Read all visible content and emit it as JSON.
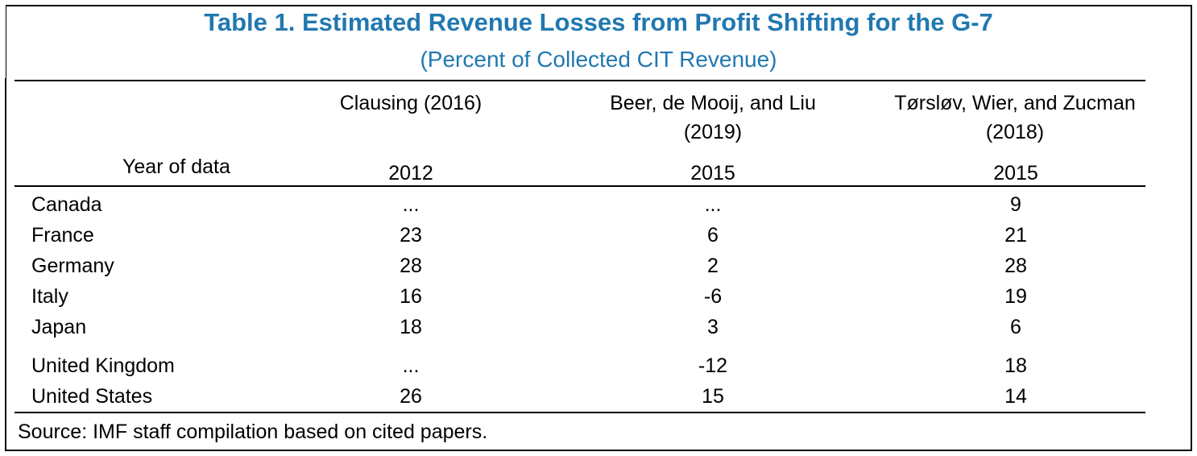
{
  "title": "Table 1. Estimated Revenue Losses from Profit Shifting for the G-7",
  "subtitle": "(Percent of Collected CIT Revenue)",
  "columns": [
    {
      "line1": "Clausing (2016)",
      "line2": "",
      "year": "2012"
    },
    {
      "line1": "Beer, de Mooij, and Liu",
      "line2": "(2019)",
      "year": "2015"
    },
    {
      "line1": "Tørsløv, Wier, and Zucman",
      "line2": "(2018)",
      "year": "2015"
    }
  ],
  "year_label": "Year of data",
  "rows": [
    {
      "country": "Canada",
      "values": [
        "...",
        "...",
        "9"
      ]
    },
    {
      "country": "France",
      "values": [
        "23",
        "6",
        "21"
      ]
    },
    {
      "country": "Germany",
      "values": [
        "28",
        "2",
        "28"
      ]
    },
    {
      "country": "Italy",
      "values": [
        "16",
        "-6",
        "19"
      ]
    },
    {
      "country": "Japan",
      "values": [
        "18",
        "3",
        "6"
      ]
    },
    {
      "country": "United Kingdom",
      "values": [
        "...",
        "-12",
        "18"
      ]
    },
    {
      "country": "United States",
      "values": [
        "26",
        "15",
        "14"
      ]
    }
  ],
  "source": "Source: IMF staff compilation based on cited papers."
}
